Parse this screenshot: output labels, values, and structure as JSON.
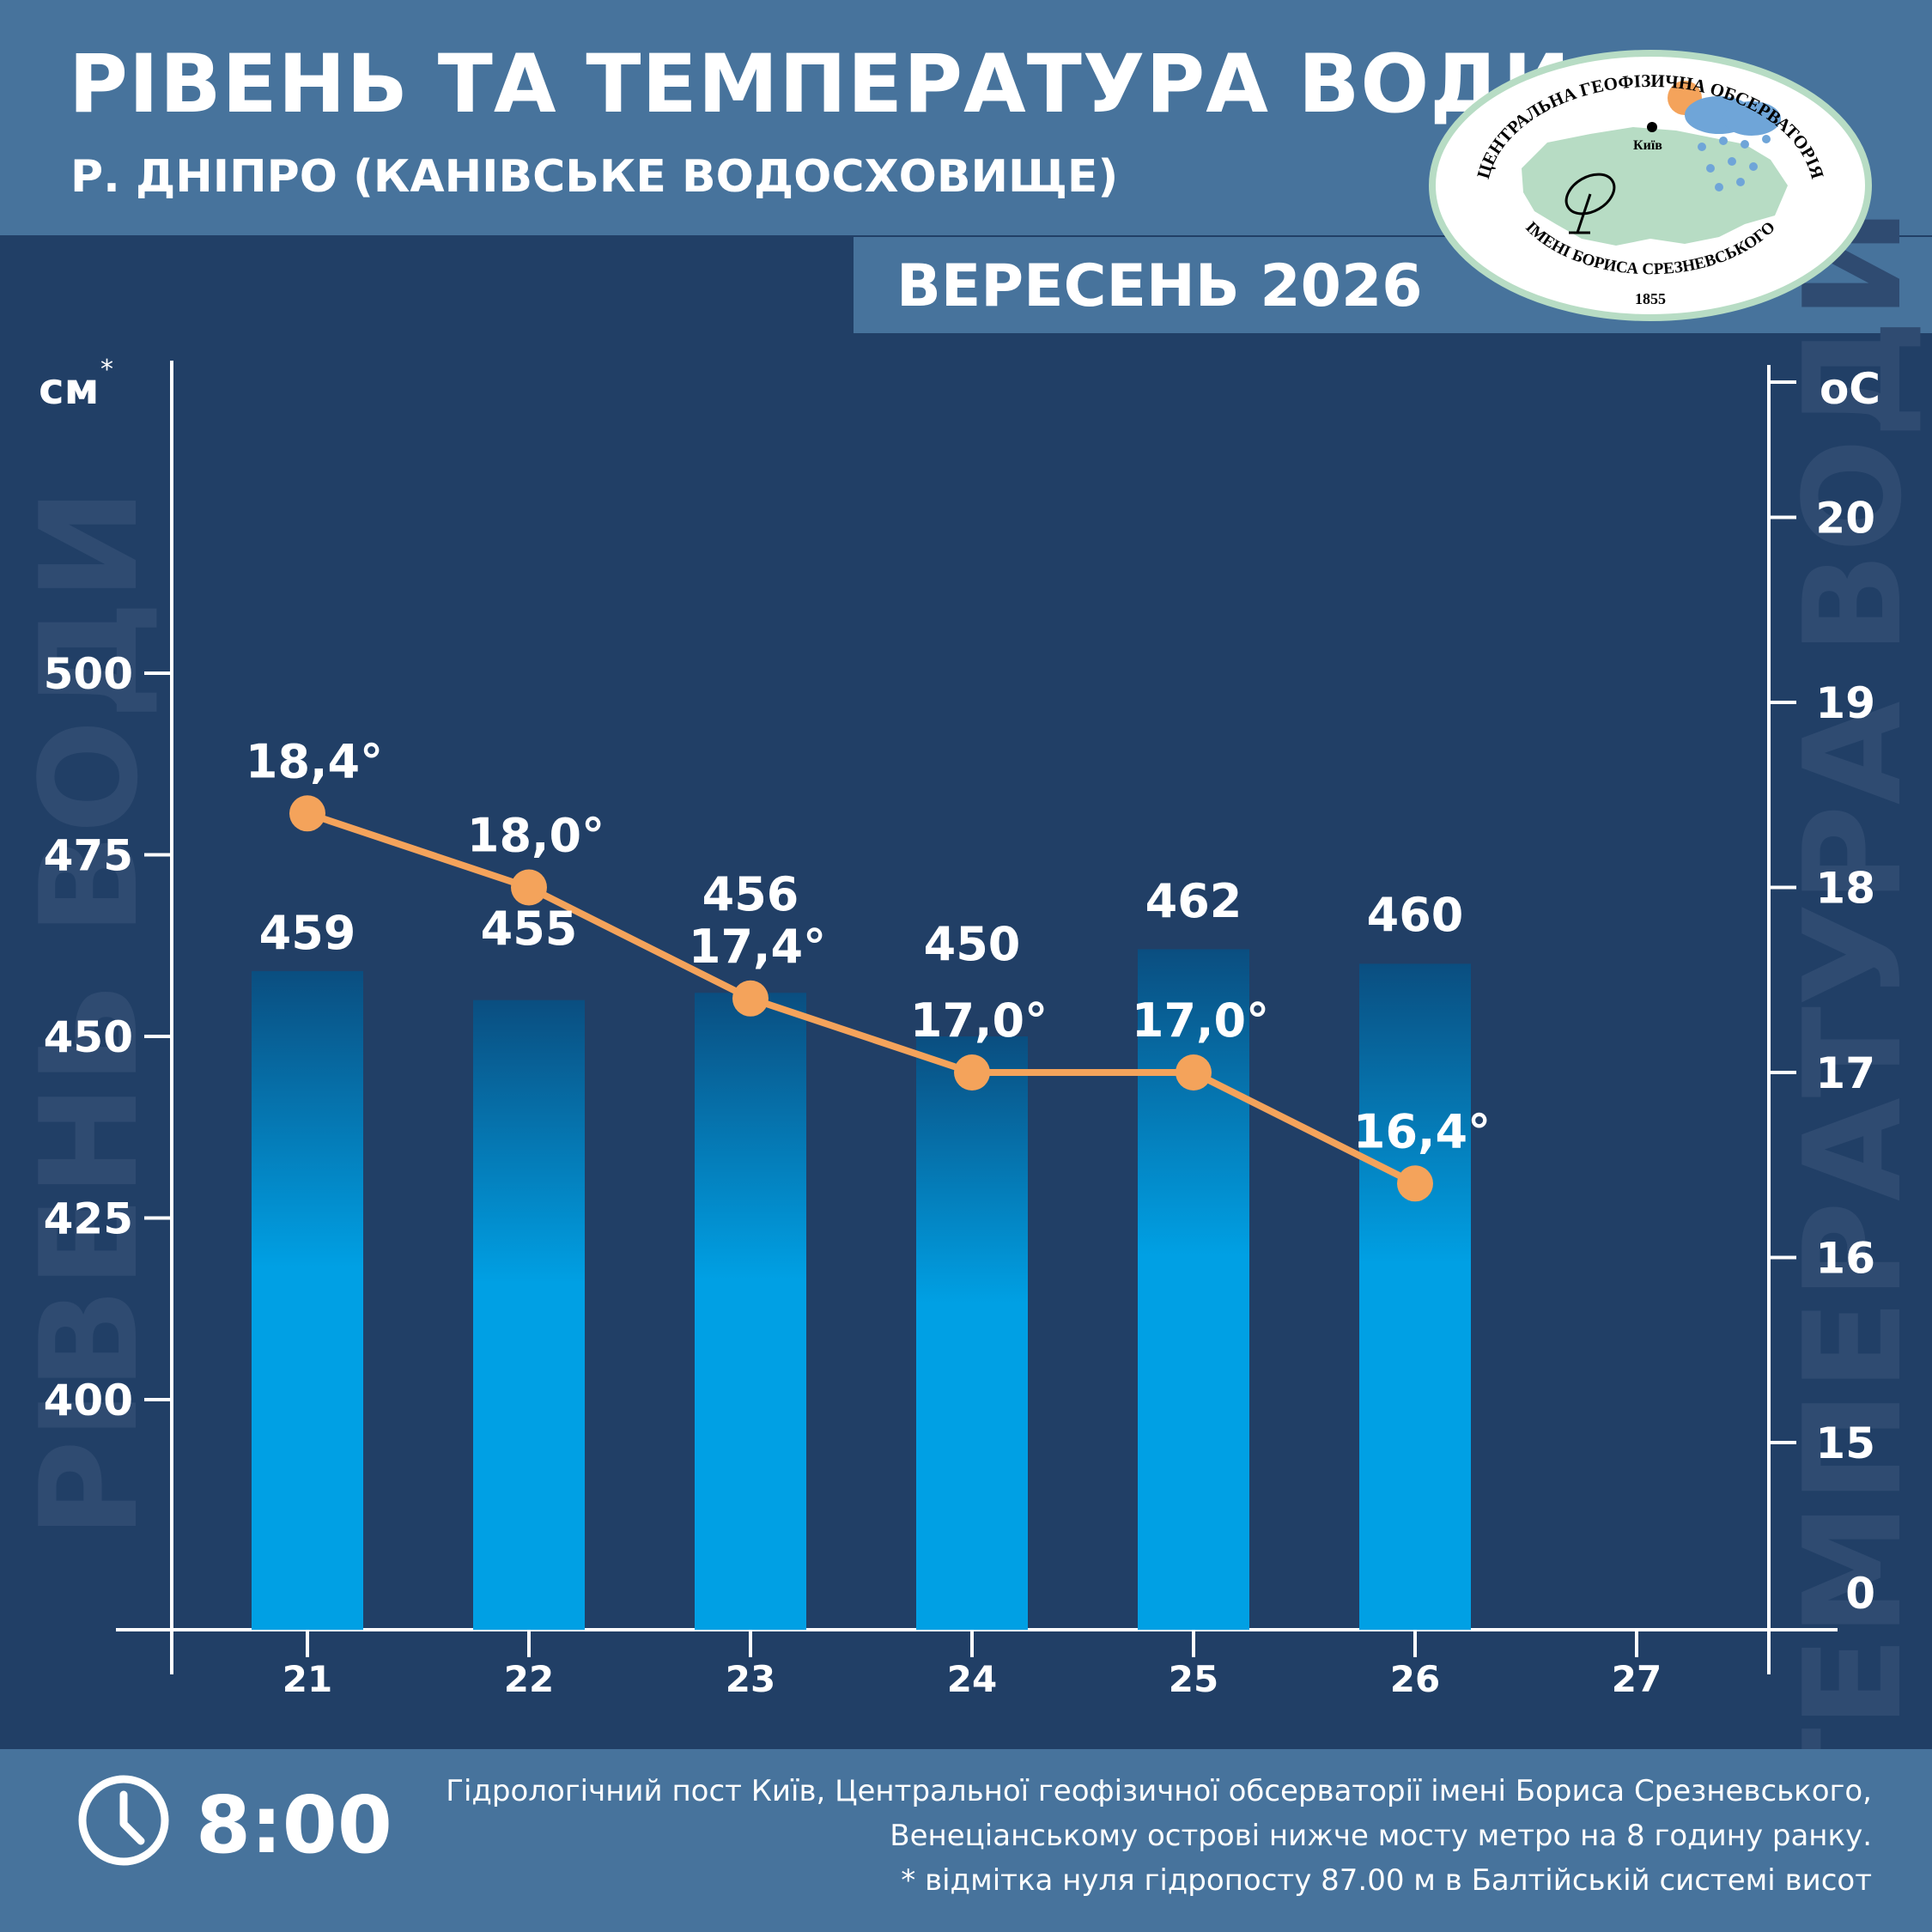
{
  "header": {
    "title": "РІВЕНЬ ТА ТЕМПЕРАТУРА ВОДИ",
    "subtitle": "Р. ДНІПРО (КАНІВСЬКЕ ВОДОСХОВИЩЕ)",
    "period": "ВЕРЕСЕНЬ 2026"
  },
  "logo": {
    "text_top": "ЦЕНТРАЛЬНА ГЕОФІЗИЧНА ОБСЕРВАТОРІЯ",
    "text_bottom": "ІМЕНІ БОРИСА СРЕЗНЕВСЬКОГО",
    "year": "1855",
    "city": "Київ"
  },
  "footer": {
    "time": "8:00",
    "note_line1": "Гідрологічний пост Київ, Центральної геофізичної обсерваторії імені Бориса Срезневського,",
    "note_line2": "Венеціанському острові нижче мосту метро  на 8 годину ранку.",
    "note_line3": "* відмітка нуля гідропосту 87.00 м в Балтійській системі висот"
  },
  "colors": {
    "background": "#213f66",
    "band": "#47739c",
    "bar_top": "#0a4e80",
    "bar_bottom": "#00a0e4",
    "line": "#f4a35b",
    "text": "#ffffff",
    "watermark": "#2f4b71"
  },
  "chart_data": {
    "type": "bar",
    "categories": [
      "21",
      "22",
      "23",
      "24",
      "25",
      "26",
      "27"
    ],
    "series": [
      {
        "values": [
          459,
          455,
          456,
          450,
          462,
          460,
          null
        ],
        "labels": [
          "459",
          "455",
          "456",
          "450",
          "462",
          "460",
          ""
        ]
      },
      {
        "values": [
          18.4,
          18.0,
          17.4,
          17.0,
          17.0,
          16.4,
          null
        ],
        "labels": [
          "18,4°",
          "18,0°",
          "17,4°",
          "17,0°",
          "17,0°",
          "16,4°",
          ""
        ]
      }
    ],
    "y_left": {
      "label": "см",
      "label_suffix": "*",
      "ticks": [
        400,
        425,
        450,
        475,
        500
      ],
      "tick_labels": [
        "400",
        "425",
        "450",
        "475",
        "500"
      ],
      "title": "РІВЕНЬ ВОДИ"
    },
    "y_right": {
      "label": "оС",
      "ticks": [
        0,
        15,
        16,
        17,
        18,
        19,
        20
      ],
      "tick_labels": [
        "0",
        "15",
        "16",
        "17",
        "18",
        "19",
        "20"
      ],
      "title": "ТЕМПЕРАТУРА ВОДИ",
      "scale_break": true
    },
    "grid": false,
    "legend": "none"
  }
}
